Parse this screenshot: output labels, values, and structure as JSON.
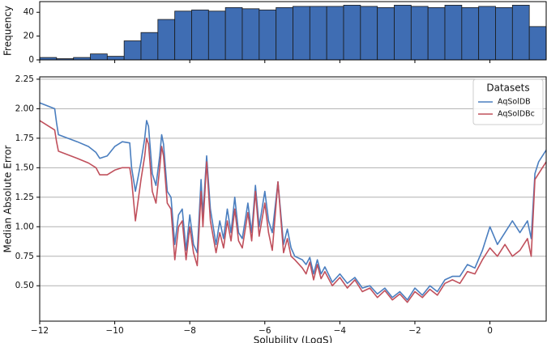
{
  "chart_data": [
    {
      "type": "histogram",
      "ylabel": "Frequency",
      "color": "#3f6db3",
      "edgecolor": "#1a1a1a",
      "bins": [
        -12,
        -11.55,
        -11.1,
        -10.65,
        -10.2,
        -9.75,
        -9.3,
        -8.85,
        -8.4,
        -7.95,
        -7.5,
        -7.05,
        -6.6,
        -6.15,
        -5.7,
        -5.25,
        -4.8,
        -4.35,
        -3.9,
        -3.45,
        -3,
        -2.55,
        -2.1,
        -1.65,
        -1.2,
        -0.75,
        -0.3,
        0.15,
        0.6,
        1.05,
        1.5
      ],
      "values": [
        2,
        1,
        2,
        5,
        3,
        16,
        23,
        34,
        41,
        42,
        41,
        44,
        43,
        42,
        44,
        45,
        45,
        45,
        46,
        45,
        44,
        46,
        45,
        44,
        46,
        44,
        45,
        44,
        46,
        28
      ],
      "xlim": [
        -12,
        1.5
      ],
      "xticks": [
        -12,
        -10,
        -8,
        -6,
        -4,
        -2,
        0
      ],
      "ylim": [
        0,
        49
      ],
      "yticks": [
        0,
        20,
        40
      ]
    },
    {
      "type": "line",
      "xlabel": "Solubility (LogS)",
      "ylabel": "Median Absolute Error",
      "grid": true,
      "legend": "upper right",
      "legend_title": "Datasets",
      "x": [
        -12,
        -11.6,
        -11.55,
        -11.5,
        -11,
        -10.7,
        -10.5,
        -10.4,
        -10.2,
        -10,
        -9.8,
        -9.6,
        -9.55,
        -9.45,
        -9.3,
        -9.2,
        -9.15,
        -9.1,
        -9,
        -8.9,
        -8.8,
        -8.75,
        -8.7,
        -8.6,
        -8.5,
        -8.4,
        -8.3,
        -8.2,
        -8.1,
        -8,
        -7.9,
        -7.8,
        -7.7,
        -7.65,
        -7.55,
        -7.45,
        -7.3,
        -7.2,
        -7.1,
        -7,
        -6.9,
        -6.8,
        -6.7,
        -6.6,
        -6.45,
        -6.35,
        -6.25,
        -6.15,
        -6,
        -5.9,
        -5.8,
        -5.65,
        -5.5,
        -5.4,
        -5.3,
        -5.2,
        -5,
        -4.9,
        -4.8,
        -4.7,
        -4.6,
        -4.5,
        -4.4,
        -4.2,
        -4,
        -3.8,
        -3.6,
        -3.4,
        -3.2,
        -3,
        -2.8,
        -2.6,
        -2.4,
        -2.2,
        -2,
        -1.8,
        -1.6,
        -1.4,
        -1.2,
        -1,
        -0.8,
        -0.6,
        -0.4,
        -0.2,
        0,
        0.2,
        0.4,
        0.6,
        0.8,
        1,
        1.1,
        1.2,
        1.3,
        1.5
      ],
      "series": [
        {
          "name": "AqSolDB",
          "color": "#4a7ebf",
          "values": [
            2.05,
            2.0,
            1.88,
            1.78,
            1.72,
            1.68,
            1.63,
            1.58,
            1.6,
            1.68,
            1.72,
            1.71,
            1.5,
            1.3,
            1.55,
            1.75,
            1.9,
            1.85,
            1.45,
            1.35,
            1.6,
            1.78,
            1.7,
            1.3,
            1.25,
            0.85,
            1.1,
            1.15,
            0.8,
            1.1,
            0.85,
            0.78,
            1.4,
            1.1,
            1.6,
            1.15,
            0.85,
            1.05,
            0.9,
            1.15,
            0.95,
            1.25,
            0.95,
            0.9,
            1.2,
            0.95,
            1.35,
            1.0,
            1.3,
            1.05,
            0.95,
            1.38,
            0.85,
            0.98,
            0.82,
            0.75,
            0.72,
            0.68,
            0.74,
            0.6,
            0.72,
            0.6,
            0.66,
            0.53,
            0.6,
            0.52,
            0.57,
            0.48,
            0.5,
            0.43,
            0.48,
            0.4,
            0.45,
            0.38,
            0.48,
            0.42,
            0.5,
            0.45,
            0.55,
            0.58,
            0.58,
            0.68,
            0.65,
            0.8,
            1.0,
            0.85,
            0.95,
            1.05,
            0.95,
            1.05,
            0.9,
            1.45,
            1.55,
            1.65
          ]
        },
        {
          "name": "AqSolDBc",
          "color": "#c0505c",
          "values": [
            1.9,
            1.82,
            1.72,
            1.64,
            1.58,
            1.54,
            1.5,
            1.44,
            1.44,
            1.48,
            1.5,
            1.5,
            1.4,
            1.05,
            1.4,
            1.6,
            1.75,
            1.7,
            1.3,
            1.2,
            1.5,
            1.68,
            1.6,
            1.2,
            1.15,
            0.72,
            1.0,
            1.05,
            0.72,
            1.0,
            0.78,
            0.67,
            1.3,
            1.0,
            1.55,
            1.05,
            0.78,
            0.95,
            0.82,
            1.05,
            0.88,
            1.15,
            0.88,
            0.82,
            1.12,
            0.88,
            1.3,
            0.92,
            1.2,
            0.95,
            0.8,
            1.38,
            0.78,
            0.9,
            0.75,
            0.72,
            0.65,
            0.6,
            0.7,
            0.55,
            0.68,
            0.56,
            0.62,
            0.5,
            0.57,
            0.48,
            0.55,
            0.45,
            0.48,
            0.4,
            0.46,
            0.38,
            0.43,
            0.36,
            0.45,
            0.4,
            0.47,
            0.42,
            0.52,
            0.55,
            0.52,
            0.62,
            0.6,
            0.72,
            0.82,
            0.75,
            0.85,
            0.75,
            0.8,
            0.9,
            0.75,
            1.4,
            1.45,
            1.55
          ]
        }
      ],
      "xlim": [
        -12,
        1.5
      ],
      "xticks": [
        {
          "value": -12,
          "label": "−12"
        },
        {
          "value": -10,
          "label": "−10"
        },
        {
          "value": -8,
          "label": "−8"
        },
        {
          "value": -6,
          "label": "−6"
        },
        {
          "value": -4,
          "label": "−4"
        },
        {
          "value": -2,
          "label": "−2"
        },
        0
      ],
      "ylim": [
        0.2,
        2.27
      ],
      "yticks": [
        {
          "value": 0.5,
          "label": "0.50"
        },
        0.75,
        {
          "value": 1,
          "label": "1.00"
        },
        1.25,
        {
          "value": 1.5,
          "label": "1.50"
        },
        1.75,
        {
          "value": 2,
          "label": "2.00"
        },
        2.25
      ]
    }
  ]
}
